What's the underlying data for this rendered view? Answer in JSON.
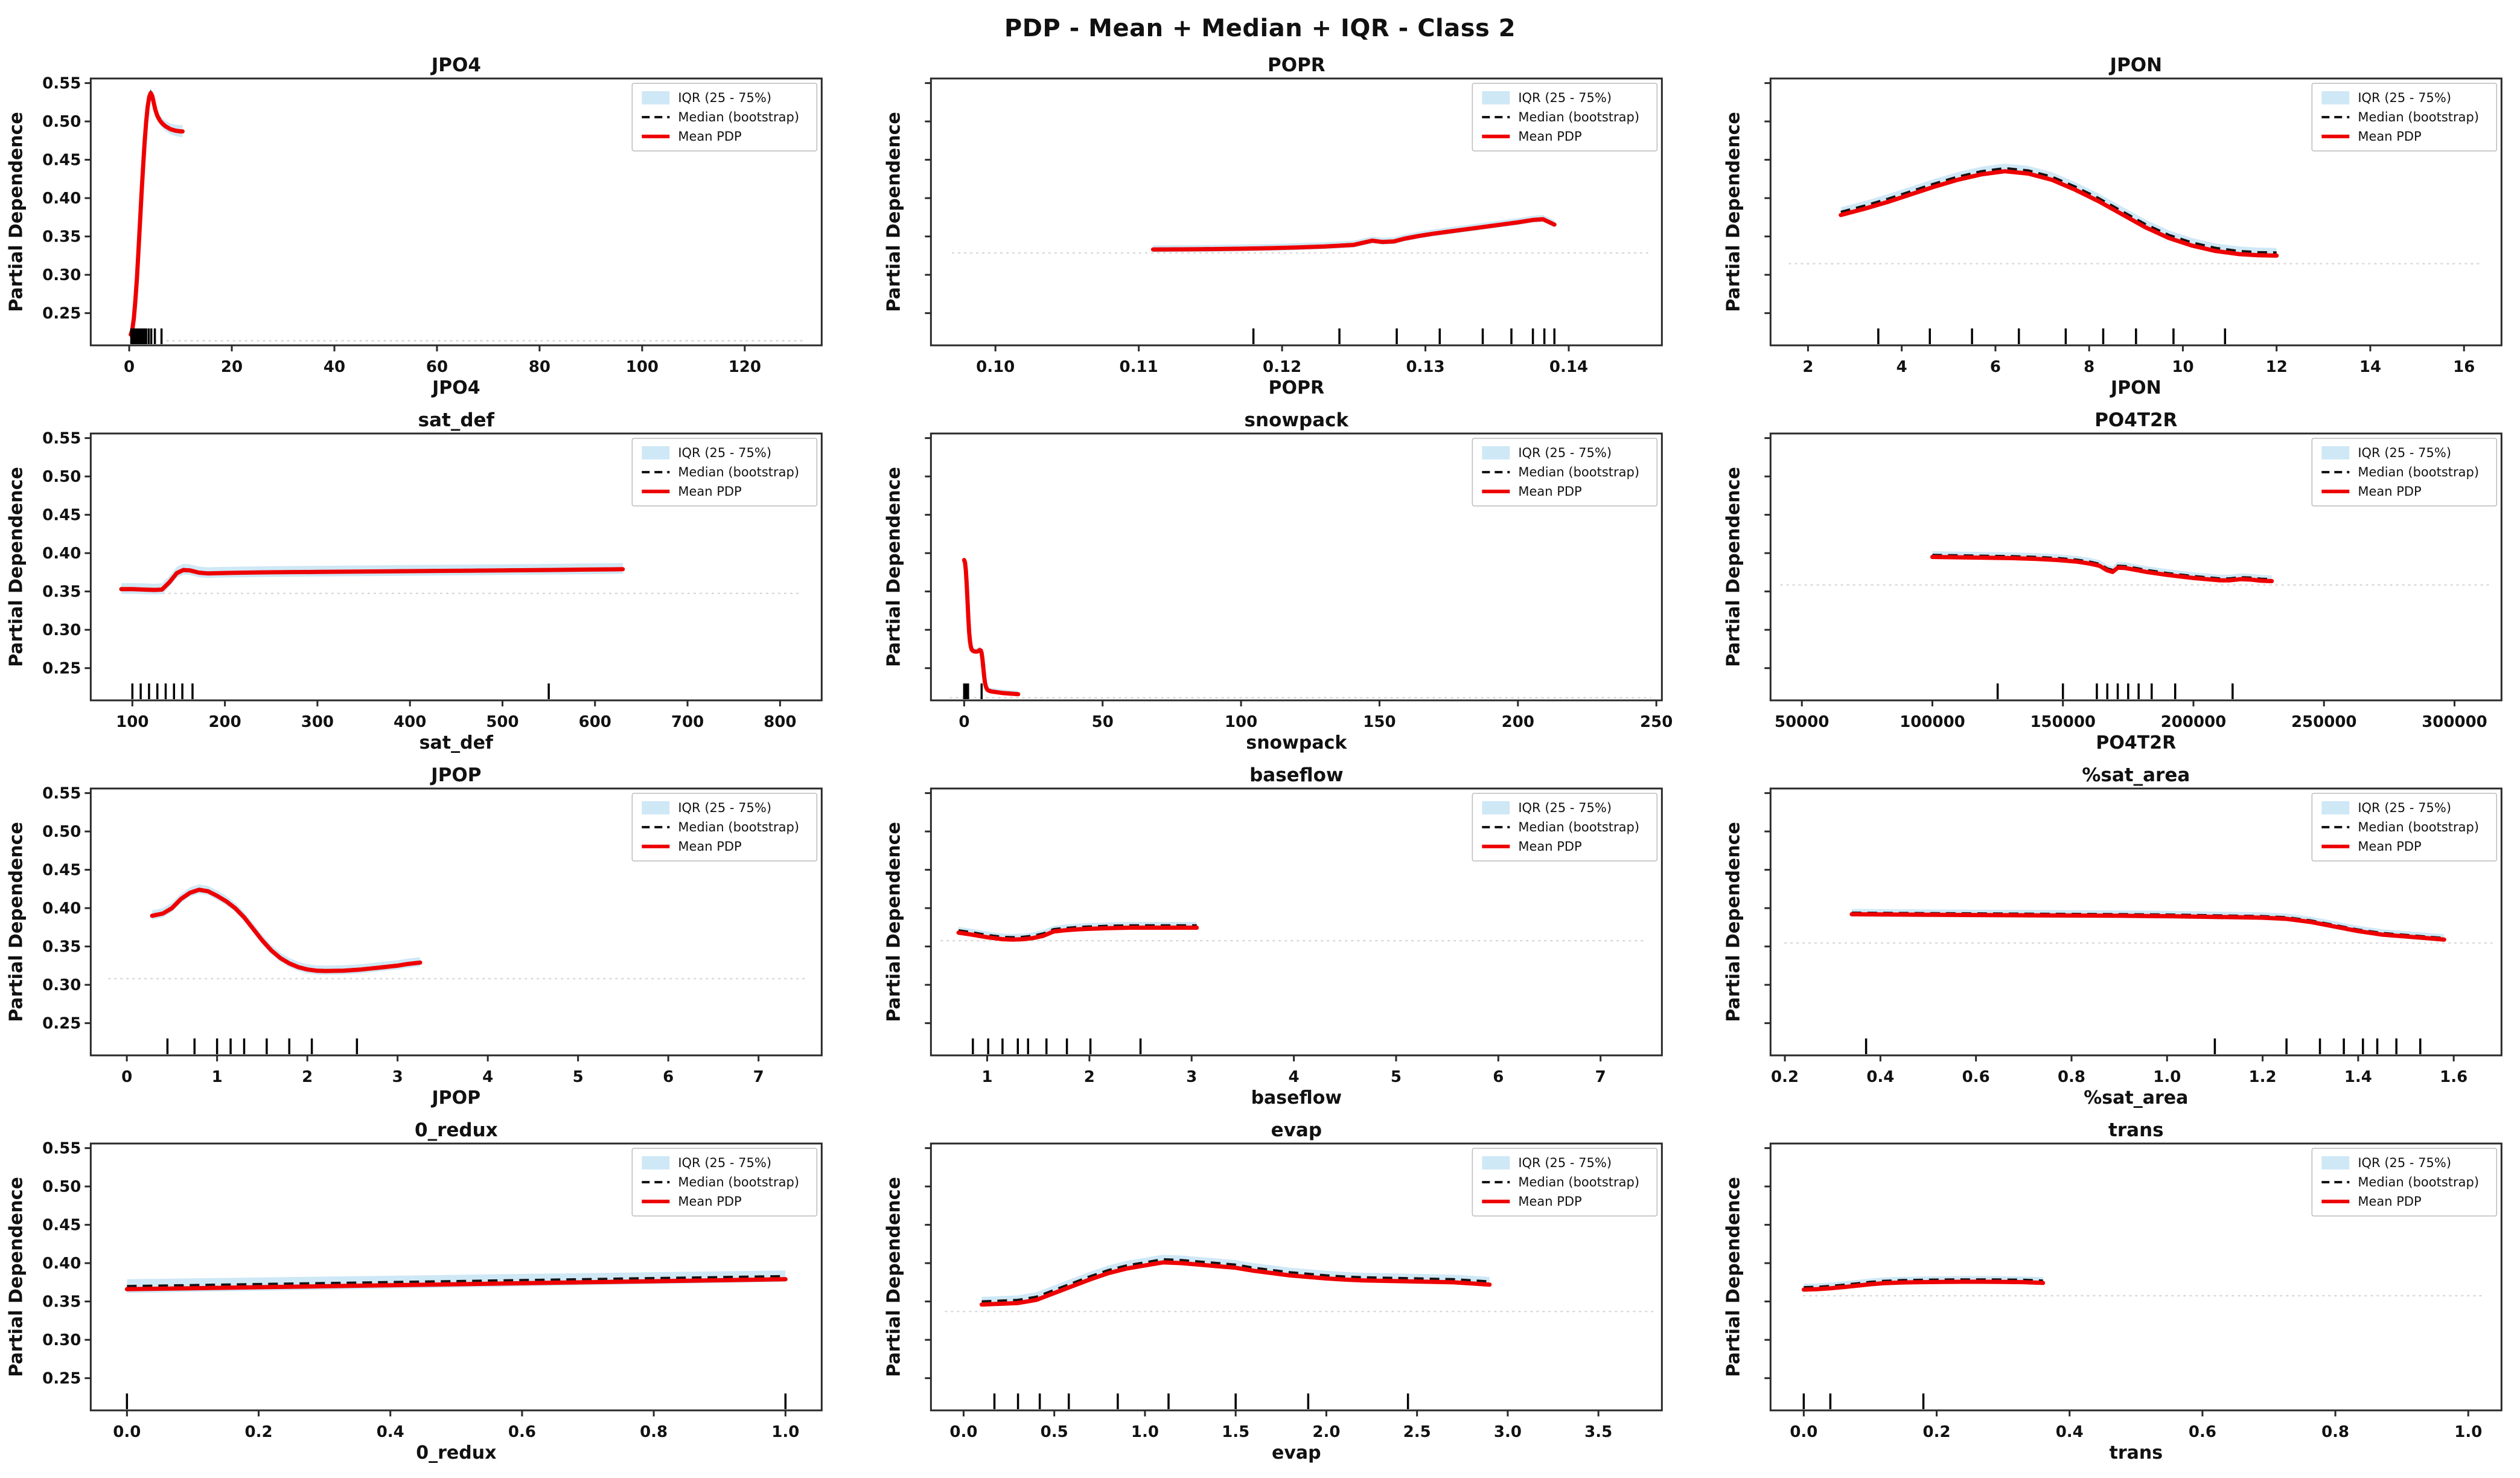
{
  "figure_title": "PDP - Mean + Median + IQR - Class 2",
  "shared": {
    "ylabel": "Partial Dependence",
    "ylim": [
      0.208,
      0.556
    ],
    "yticks": [
      0.25,
      0.3,
      0.35,
      0.4,
      0.45,
      0.5,
      0.55
    ],
    "legend_items": [
      {
        "key": "iqr",
        "label": "IQR (25 - 75%)"
      },
      {
        "key": "median",
        "label": "Median (bootstrap)"
      },
      {
        "key": "mean",
        "label": "Mean PDP"
      }
    ],
    "colors": {
      "mean": "#ee0000",
      "median": "#141414",
      "iqr_band": "#cfe8f6",
      "spine": "#2a2a2a",
      "text": "#111111",
      "ghost": "#d8d8d8",
      "legend_border": "#bbbbbb",
      "legend_bg": "#ffffff"
    }
  },
  "chart_data": [
    {
      "type": "line",
      "title": "JPO4",
      "xlabel": "JPO4",
      "show_yticklabels": true,
      "xlim": [
        -7.5,
        135
      ],
      "xticks": [
        0,
        20,
        40,
        60,
        80,
        100,
        120
      ],
      "xtick_decimals": 0,
      "x": [
        0.3,
        0.6,
        0.9,
        1.2,
        1.5,
        1.8,
        2.1,
        2.4,
        2.7,
        3.0,
        3.3,
        3.6,
        3.9,
        4.2,
        4.5,
        4.8,
        5.1,
        5.5,
        6.0,
        6.5,
        7.0,
        7.5,
        8.0,
        8.5,
        9.0,
        9.5,
        10.0,
        10.4
      ],
      "mean": [
        0.222,
        0.228,
        0.243,
        0.266,
        0.295,
        0.33,
        0.368,
        0.405,
        0.44,
        0.472,
        0.499,
        0.519,
        0.532,
        0.537,
        0.533,
        0.524,
        0.515,
        0.507,
        0.501,
        0.497,
        0.494,
        0.492,
        0.49,
        0.489,
        0.488,
        0.4875,
        0.487,
        0.487
      ],
      "median_delta": 0.0005,
      "iqr": [
        0.003,
        0.008
      ],
      "rug": [
        0.4,
        0.7,
        1.0,
        1.3,
        1.6,
        1.9,
        2.2,
        2.5,
        2.9,
        3.3,
        3.8,
        4.3,
        5.0,
        6.3
      ],
      "ghost": {
        "y": 0.214,
        "x0": 5,
        "x1": 132
      }
    },
    {
      "type": "line",
      "title": "POPR",
      "xlabel": "POPR",
      "show_yticklabels": false,
      "xlim": [
        0.0955,
        0.1465
      ],
      "xticks": [
        0.1,
        0.11,
        0.12,
        0.13,
        0.14
      ],
      "xtick_decimals": 2,
      "x": [
        0.111,
        0.113,
        0.115,
        0.117,
        0.119,
        0.121,
        0.123,
        0.125,
        0.1263,
        0.127,
        0.1278,
        0.1285,
        0.1295,
        0.1305,
        0.1315,
        0.1325,
        0.1335,
        0.1345,
        0.1355,
        0.1365,
        0.1375,
        0.1382,
        0.139
      ],
      "mean": [
        0.333,
        0.3332,
        0.3335,
        0.334,
        0.3347,
        0.3356,
        0.337,
        0.339,
        0.3445,
        0.3428,
        0.3435,
        0.347,
        0.3505,
        0.3535,
        0.356,
        0.3585,
        0.361,
        0.3635,
        0.366,
        0.3685,
        0.3715,
        0.3725,
        0.3655
      ],
      "median_delta": 0.001,
      "iqr": 0.0045,
      "rug": [
        0.118,
        0.124,
        0.128,
        0.131,
        0.134,
        0.136,
        0.1375,
        0.1383,
        0.139
      ],
      "ghost": {
        "y": 0.3285,
        "x0": 0.097,
        "x1": 0.1455
      }
    },
    {
      "type": "line",
      "title": "JPON",
      "xlabel": "JPON",
      "show_yticklabels": false,
      "xlim": [
        1.2,
        16.8
      ],
      "xticks": [
        2,
        4,
        6,
        8,
        10,
        12,
        14,
        16
      ],
      "xtick_decimals": 0,
      "x": [
        2.7,
        3.2,
        3.7,
        4.2,
        4.7,
        5.2,
        5.7,
        6.2,
        6.7,
        7.2,
        7.7,
        8.2,
        8.7,
        9.2,
        9.7,
        10.2,
        10.7,
        11.2,
        11.6,
        12.0
      ],
      "mean": [
        0.378,
        0.386,
        0.395,
        0.405,
        0.415,
        0.424,
        0.431,
        0.435,
        0.432,
        0.424,
        0.411,
        0.396,
        0.379,
        0.362,
        0.348,
        0.338,
        0.331,
        0.327,
        0.3255,
        0.325
      ],
      "median_delta": 0.004,
      "iqr": 0.006,
      "rug": [
        3.5,
        4.6,
        5.5,
        6.5,
        7.5,
        8.3,
        9.0,
        9.8,
        10.9
      ],
      "ghost": {
        "y": 0.3145,
        "x0": 1.6,
        "x1": 16.4
      }
    },
    {
      "type": "line",
      "title": "sat_def",
      "xlabel": "sat_def",
      "show_yticklabels": true,
      "xlim": [
        55,
        845
      ],
      "xticks": [
        100,
        200,
        300,
        400,
        500,
        600,
        700,
        800
      ],
      "xtick_decimals": 0,
      "x": [
        88,
        100,
        112,
        124,
        132,
        140,
        148,
        155,
        162,
        172,
        182,
        195,
        220,
        250,
        300,
        350,
        400,
        450,
        500,
        550,
        590,
        630
      ],
      "mean": [
        0.353,
        0.353,
        0.3525,
        0.352,
        0.3525,
        0.362,
        0.374,
        0.378,
        0.3775,
        0.3745,
        0.3735,
        0.374,
        0.3745,
        0.375,
        0.3755,
        0.376,
        0.3765,
        0.377,
        0.3775,
        0.378,
        0.3785,
        0.379
      ],
      "median_delta": 0.001,
      "iqr": 0.007,
      "rug": [
        100,
        109,
        118,
        127,
        136,
        145,
        154,
        165,
        550
      ],
      "ghost": {
        "y": 0.3475,
        "x0": 120,
        "x1": 820
      }
    },
    {
      "type": "line",
      "title": "snowpack",
      "xlabel": "snowpack",
      "show_yticklabels": false,
      "xlim": [
        -12,
        252
      ],
      "xticks": [
        0,
        50,
        100,
        150,
        200,
        250
      ],
      "xtick_decimals": 0,
      "x": [
        0,
        0.3,
        0.6,
        0.9,
        1.2,
        1.5,
        1.8,
        2.1,
        2.4,
        2.7,
        3.0,
        3.5,
        4.0,
        4.5,
        5.0,
        5.5,
        6.0,
        6.3,
        6.6,
        6.9,
        7.2,
        7.5,
        7.8,
        8.1,
        8.5,
        9,
        10,
        11,
        12,
        14,
        16,
        18,
        19.5
      ],
      "mean": [
        0.391,
        0.388,
        0.378,
        0.36,
        0.338,
        0.316,
        0.297,
        0.285,
        0.278,
        0.2745,
        0.273,
        0.272,
        0.2715,
        0.2715,
        0.272,
        0.2735,
        0.273,
        0.27,
        0.262,
        0.251,
        0.24,
        0.2315,
        0.2265,
        0.2235,
        0.2215,
        0.2205,
        0.2195,
        0.219,
        0.2185,
        0.2175,
        0.217,
        0.2165,
        0.216
      ],
      "median_delta": 0.001,
      "iqr": 0.0035,
      "rug": [
        0,
        0.7,
        1.4,
        6.3
      ],
      "ghost": {
        "y": 0.2115,
        "x0": -5,
        "x1": 248
      }
    },
    {
      "type": "line",
      "title": "PO4T2R",
      "xlabel": "PO4T2R",
      "show_yticklabels": false,
      "xlim": [
        38000,
        318000
      ],
      "xticks": [
        50000,
        100000,
        150000,
        200000,
        250000,
        300000
      ],
      "xtick_decimals": 0,
      "x": [
        100000,
        110000,
        120000,
        130000,
        140000,
        148000,
        155000,
        160000,
        164000,
        167000,
        169000,
        171000,
        174000,
        178000,
        182000,
        186000,
        190000,
        195000,
        200000,
        205000,
        210000,
        214000,
        218000,
        222000,
        226000,
        230000
      ],
      "mean": [
        0.395,
        0.3945,
        0.394,
        0.3935,
        0.3925,
        0.391,
        0.389,
        0.3865,
        0.3835,
        0.3775,
        0.3755,
        0.381,
        0.3805,
        0.378,
        0.3755,
        0.3735,
        0.3715,
        0.3695,
        0.3675,
        0.366,
        0.3645,
        0.3645,
        0.366,
        0.3655,
        0.364,
        0.3635
      ],
      "median_delta": 0.0025,
      "iqr": 0.005,
      "rug": [
        125000,
        150000,
        163000,
        167000,
        171000,
        175000,
        179000,
        184000,
        193000,
        215000
      ],
      "ghost": {
        "y": 0.3585,
        "x0": 42000,
        "x1": 314000
      }
    },
    {
      "type": "line",
      "title": "JPOP",
      "xlabel": "JPOP",
      "show_yticklabels": true,
      "xlim": [
        -0.4,
        7.7
      ],
      "xticks": [
        0,
        1,
        2,
        3,
        4,
        5,
        6,
        7
      ],
      "xtick_decimals": 0,
      "x": [
        0.28,
        0.4,
        0.5,
        0.6,
        0.7,
        0.8,
        0.9,
        1.0,
        1.1,
        1.2,
        1.3,
        1.4,
        1.5,
        1.6,
        1.7,
        1.8,
        1.9,
        2.0,
        2.1,
        2.2,
        2.4,
        2.6,
        2.8,
        3.0,
        3.1,
        3.25
      ],
      "mean": [
        0.39,
        0.393,
        0.4,
        0.412,
        0.42,
        0.424,
        0.422,
        0.416,
        0.409,
        0.4,
        0.388,
        0.373,
        0.358,
        0.345,
        0.335,
        0.328,
        0.323,
        0.32,
        0.3185,
        0.318,
        0.3185,
        0.32,
        0.3225,
        0.325,
        0.327,
        0.329
      ],
      "median_delta": 0.001,
      "iqr": 0.006,
      "rug": [
        0.45,
        0.75,
        1.0,
        1.15,
        1.3,
        1.55,
        1.8,
        2.05,
        2.55
      ],
      "ghost": {
        "y": 0.308,
        "x0": -0.2,
        "x1": 7.55
      }
    },
    {
      "type": "line",
      "title": "baseflow",
      "xlabel": "baseflow",
      "show_yticklabels": false,
      "xlim": [
        0.45,
        7.6
      ],
      "xticks": [
        1,
        2,
        3,
        4,
        5,
        6,
        7
      ],
      "xtick_decimals": 0,
      "x": [
        0.72,
        0.85,
        1.0,
        1.15,
        1.25,
        1.35,
        1.45,
        1.55,
        1.65,
        1.75,
        1.9,
        2.0,
        2.2,
        2.4,
        2.6,
        2.8,
        3.0,
        3.05
      ],
      "mean": [
        0.368,
        0.3655,
        0.362,
        0.3595,
        0.359,
        0.3595,
        0.361,
        0.364,
        0.3695,
        0.371,
        0.3725,
        0.373,
        0.374,
        0.3745,
        0.3745,
        0.3745,
        0.3745,
        0.3745
      ],
      "median_delta": 0.003,
      "iqr": 0.0045,
      "rug": [
        0.86,
        1.01,
        1.15,
        1.3,
        1.4,
        1.58,
        1.78,
        2.01,
        2.5
      ],
      "ghost": {
        "y": 0.3575,
        "x0": 0.55,
        "x1": 7.45
      }
    },
    {
      "type": "line",
      "title": "%sat_area",
      "xlabel": "%sat_area",
      "show_yticklabels": false,
      "xlim": [
        0.17,
        1.7
      ],
      "xticks": [
        0.2,
        0.4,
        0.6,
        0.8,
        1.0,
        1.2,
        1.4,
        1.6
      ],
      "xtick_decimals": 1,
      "x": [
        0.34,
        0.45,
        0.6,
        0.75,
        0.9,
        1.0,
        1.1,
        1.2,
        1.25,
        1.3,
        1.35,
        1.4,
        1.45,
        1.5,
        1.55,
        1.58
      ],
      "mean": [
        0.392,
        0.3915,
        0.391,
        0.3905,
        0.39,
        0.3895,
        0.3885,
        0.3875,
        0.386,
        0.382,
        0.376,
        0.37,
        0.3655,
        0.363,
        0.3605,
        0.359
      ],
      "median_delta": 0.002,
      "iqr": 0.005,
      "rug": [
        0.37,
        1.1,
        1.25,
        1.32,
        1.37,
        1.41,
        1.44,
        1.48,
        1.53
      ],
      "ghost": {
        "y": 0.3545,
        "x0": 0.2,
        "x1": 1.68
      }
    },
    {
      "type": "line",
      "title": "0_redux",
      "xlabel": "0_redux",
      "show_yticklabels": true,
      "xlim": [
        -0.055,
        1.055
      ],
      "xticks": [
        0.0,
        0.2,
        0.4,
        0.6,
        0.8,
        1.0
      ],
      "xtick_decimals": 1,
      "x": [
        0,
        0.1,
        0.2,
        0.3,
        0.4,
        0.5,
        0.6,
        0.7,
        0.8,
        0.9,
        1.0
      ],
      "mean": [
        0.366,
        0.3673,
        0.3686,
        0.3699,
        0.3712,
        0.3725,
        0.3738,
        0.3751,
        0.3764,
        0.3777,
        0.379
      ],
      "median_delta": 0.004,
      "iqr": [
        0.009,
        0.0075
      ],
      "rug": [
        0.0,
        1.0
      ],
      "ghost": null
    },
    {
      "type": "line",
      "title": "evap",
      "xlabel": "evap",
      "show_yticklabels": false,
      "xlim": [
        -0.18,
        3.85
      ],
      "xticks": [
        0.0,
        0.5,
        1.0,
        1.5,
        2.0,
        2.5,
        3.0,
        3.5
      ],
      "xtick_decimals": 1,
      "x": [
        0.1,
        0.2,
        0.3,
        0.4,
        0.5,
        0.6,
        0.7,
        0.8,
        0.9,
        1.0,
        1.1,
        1.2,
        1.3,
        1.4,
        1.5,
        1.6,
        1.7,
        1.8,
        1.9,
        2.0,
        2.1,
        2.2,
        2.3,
        2.4,
        2.5,
        2.6,
        2.7,
        2.8,
        2.9
      ],
      "mean": [
        0.346,
        0.347,
        0.348,
        0.352,
        0.361,
        0.37,
        0.379,
        0.387,
        0.393,
        0.397,
        0.401,
        0.4,
        0.398,
        0.396,
        0.394,
        0.39,
        0.387,
        0.384,
        0.382,
        0.38,
        0.3785,
        0.3775,
        0.377,
        0.3765,
        0.376,
        0.3755,
        0.375,
        0.3735,
        0.372
      ],
      "median_delta": 0.004,
      "iqr": 0.006,
      "rug": [
        0.17,
        0.3,
        0.42,
        0.58,
        0.85,
        1.13,
        1.5,
        1.9,
        2.45
      ],
      "ghost": {
        "y": 0.337,
        "x0": -0.1,
        "x1": 3.8
      }
    },
    {
      "type": "line",
      "title": "trans",
      "xlabel": "trans",
      "show_yticklabels": false,
      "xlim": [
        -0.05,
        1.05
      ],
      "xticks": [
        0.0,
        0.2,
        0.4,
        0.6,
        0.8,
        1.0
      ],
      "xtick_decimals": 1,
      "x": [
        0,
        0.02,
        0.04,
        0.06,
        0.08,
        0.1,
        0.12,
        0.15,
        0.18,
        0.21,
        0.24,
        0.27,
        0.3,
        0.33,
        0.36
      ],
      "mean": [
        0.3655,
        0.366,
        0.3672,
        0.3688,
        0.3706,
        0.3725,
        0.3738,
        0.3748,
        0.3752,
        0.3755,
        0.3757,
        0.3757,
        0.3755,
        0.3752,
        0.3742
      ],
      "median_delta": 0.003,
      "iqr": 0.0045,
      "rug": [
        0.0,
        0.04,
        0.18
      ],
      "ghost": {
        "y": 0.3575,
        "x0": 0.0,
        "x1": 1.02
      }
    }
  ]
}
